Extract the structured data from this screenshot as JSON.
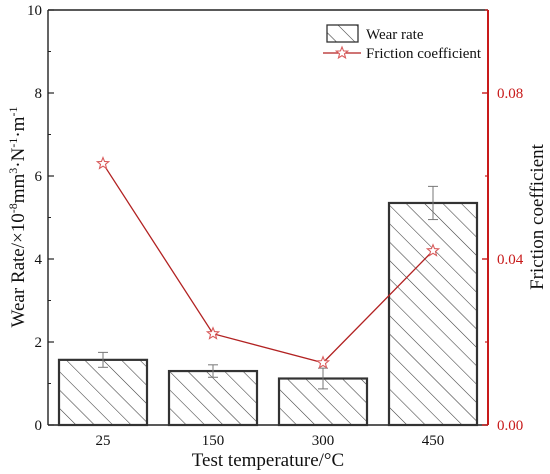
{
  "chart_data": {
    "type": "bar",
    "categories": [
      "25",
      "150",
      "300",
      "450"
    ],
    "xlabel": "Test temperature/°C",
    "ylabel_left_parts": [
      "Wear Rate/×10",
      "-8",
      "mm",
      "3",
      "·N",
      "-1",
      "·m",
      "-1"
    ],
    "ylabel_right": "Friction coefficient",
    "y_left": {
      "lim": [
        0,
        10
      ],
      "ticks": [
        "0",
        "2",
        "4",
        "6",
        "8",
        "10"
      ]
    },
    "y_right": {
      "lim": [
        0,
        0.1
      ],
      "ticks": [
        "0.00",
        "0.04",
        "0.08"
      ]
    },
    "series": [
      {
        "name": "Wear rate",
        "kind": "bar",
        "axis": "left",
        "values": [
          1.57,
          1.3,
          1.12,
          5.35
        ],
        "errors": [
          0.18,
          0.15,
          0.25,
          0.4
        ],
        "color": "#333333",
        "pattern": "diagonal-hatch"
      },
      {
        "name": "Friction coefficient",
        "kind": "line",
        "axis": "right",
        "values": [
          0.063,
          0.022,
          0.015,
          0.042
        ],
        "color": "#b22222",
        "marker": "star-open"
      }
    ],
    "legend": {
      "position": "top-right"
    },
    "grid": false
  }
}
